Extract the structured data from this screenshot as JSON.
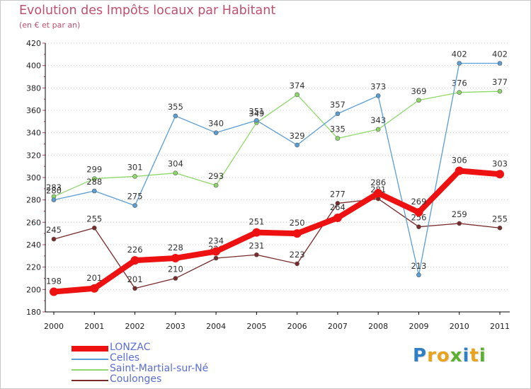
{
  "header": {
    "title": "Evolution des Impôts locaux par Habitant",
    "subtitle": "(en € et par an)"
  },
  "chart_data": {
    "type": "line",
    "title": "Evolution des Impôts locaux par Habitant",
    "subtitle": "(en € et par an)",
    "xlabel": "",
    "ylabel": "",
    "x": [
      "2000",
      "2001",
      "2002",
      "2003",
      "2004",
      "2005",
      "2006",
      "2007",
      "2008",
      "2009",
      "2010",
      "2011"
    ],
    "ylim": [
      180,
      420
    ],
    "yticks": [
      "180",
      "200",
      "220",
      "240",
      "260",
      "280",
      "300",
      "320",
      "340",
      "360",
      "380",
      "400",
      "420"
    ],
    "grid": "horizontal dotted",
    "legend_position": "bottom-left",
    "series": [
      {
        "name": "Coulonges",
        "color": "#7a2a2a",
        "values": [
          245,
          255,
          201,
          210,
          228,
          231,
          223,
          277,
          281,
          256,
          259,
          255
        ],
        "labels": [
          "245",
          "255",
          "201",
          "210",
          "228",
          "231",
          "223",
          "277",
          "281",
          "256",
          "259",
          "255"
        ]
      },
      {
        "name": "Saint-Martial-sur-Né",
        "color": "#8ed86a",
        "values": [
          283,
          299,
          301,
          304,
          293,
          349,
          374,
          335,
          343,
          369,
          376,
          377
        ],
        "labels": [
          "283",
          "299",
          "301",
          "304",
          "293",
          "349",
          "374",
          "335",
          "343",
          "369",
          "376",
          "377"
        ]
      },
      {
        "name": "Celles",
        "color": "#5a9ed6",
        "values": [
          280,
          288,
          275,
          355,
          340,
          351,
          329,
          357,
          373,
          213,
          402,
          402
        ],
        "labels": [
          "280",
          "288",
          "275",
          "355",
          "340",
          "351",
          "329",
          "357",
          "373",
          "213",
          "402",
          "402"
        ]
      },
      {
        "name": "LONZAC",
        "color": "#ee1111",
        "values": [
          198,
          201,
          226,
          228,
          234,
          251,
          250,
          264,
          286,
          269,
          306,
          303
        ],
        "labels": [
          "198",
          "201",
          "226",
          "228",
          "234",
          "251",
          "250",
          "264",
          "286",
          "269",
          "306",
          "303"
        ]
      }
    ]
  },
  "legend": {
    "items": [
      {
        "label": "LONZAC",
        "color": "#ee1111"
      },
      {
        "label": "Celles",
        "color": "#5a9ed6"
      },
      {
        "label": "Saint-Martial-sur-Né",
        "color": "#8ed86a"
      },
      {
        "label": "Coulonges",
        "color": "#7a2a2a"
      }
    ]
  },
  "logo": {
    "text": "Proxiti",
    "letters": [
      {
        "char": "P",
        "color": "#2f7fc4"
      },
      {
        "char": "r",
        "color": "#e8a21c"
      },
      {
        "char": "o",
        "color": "#e8a21c"
      },
      {
        "char": "x",
        "color": "#5bb030"
      },
      {
        "char": "i",
        "color": "#2f7fc4"
      },
      {
        "char": "t",
        "color": "#e8a21c"
      },
      {
        "char": "i",
        "color": "#5bb030"
      }
    ]
  }
}
